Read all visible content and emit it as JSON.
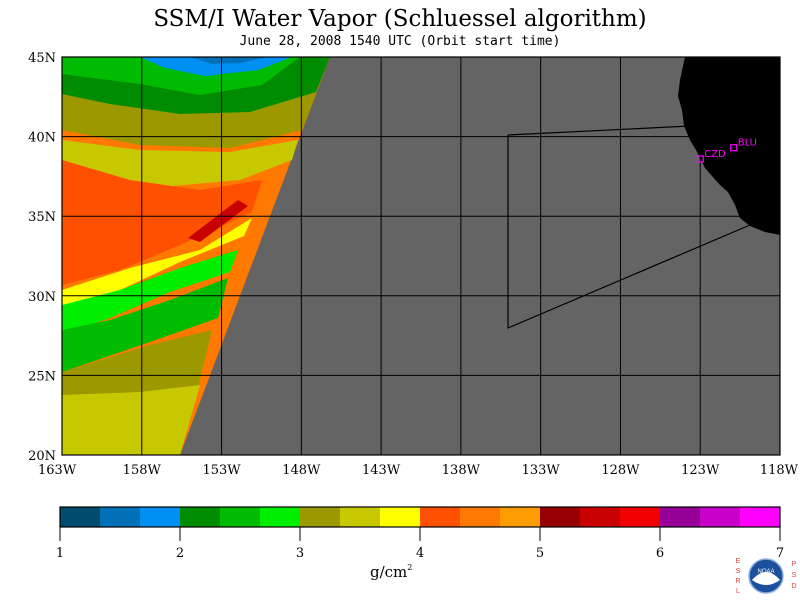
{
  "title": "SSM/I Water Vapor (Schluessel algorithm)",
  "subtitle": "June 28, 2008  1540 UTC  (Orbit start time)",
  "map": {
    "lat_labels": [
      "45N",
      "40N",
      "35N",
      "30N",
      "25N",
      "20N"
    ],
    "lon_labels": [
      "163W",
      "158W",
      "153W",
      "148W",
      "143W",
      "138W",
      "133W",
      "128W",
      "123W",
      "118W"
    ],
    "stations": [
      {
        "id": "CZD",
        "label": "CZD",
        "lon": -123.0,
        "lat": 38.6
      },
      {
        "id": "BLU",
        "label": "BLU",
        "lon": -120.9,
        "lat": 39.3
      }
    ],
    "colors": {
      "no_data": "#646464",
      "land": "#000000",
      "grid": "#000000",
      "station": "#ff00ff"
    }
  },
  "colorbar": {
    "tick_labels": [
      "1",
      "2",
      "3",
      "4",
      "5",
      "6",
      "7"
    ],
    "unit_base": "g/cm",
    "unit_exp": "2",
    "range": [
      1,
      7
    ],
    "colors": [
      "#004c6e",
      "#0070b8",
      "#0090f4",
      "#008c00",
      "#00bc00",
      "#00ee00",
      "#9c9800",
      "#c8c800",
      "#ffff00",
      "#ff5000",
      "#ff7800",
      "#ff9c00",
      "#960000",
      "#c80000",
      "#f00000",
      "#960096",
      "#c800c8",
      "#ff00ff"
    ]
  },
  "logo": {
    "left_letters": "ESRL",
    "right_letters": "PSD",
    "badge": "NOAA"
  }
}
